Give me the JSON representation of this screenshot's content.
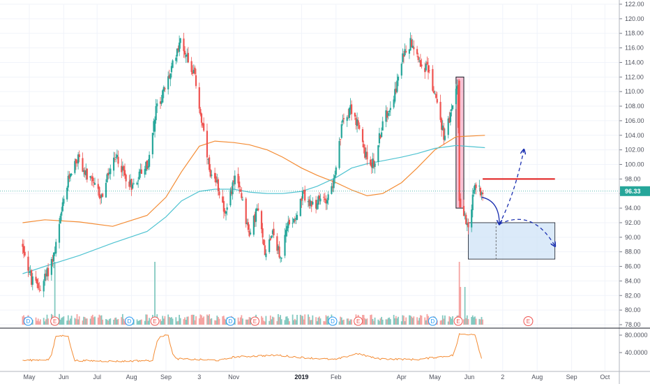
{
  "colors": {
    "up": "#26a69a",
    "down": "#ef5350",
    "vol_up": "#83c9c0",
    "vol_down": "#f5a3a1",
    "ma_orange": "#f48c34",
    "ma_teal": "#4fc3d1",
    "last_price_bg": "#26a69a",
    "dividend": "#2196f3",
    "earnings": "#ef5350",
    "highlight_rect": "#f48fb1",
    "target_box": "#cfe3f7",
    "arrow": "#1a2fb0",
    "resistance": "#e01b1b",
    "indicator_line": "#f48c34"
  },
  "price_axis": {
    "ticks": [
      "122.00",
      "120.00",
      "118.00",
      "116.00",
      "114.00",
      "112.00",
      "110.00",
      "108.00",
      "106.00",
      "104.00",
      "102.00",
      "100.00",
      "98.00",
      "96.00",
      "94.00",
      "92.00",
      "90.00",
      "88.00",
      "86.00",
      "84.00",
      "82.00",
      "80.00",
      "78.00"
    ],
    "last_price": "96.33"
  },
  "indicator_axis": {
    "ticks": [
      "80.0000",
      "40.0000"
    ]
  },
  "time_axis": {
    "labels": [
      "May",
      "Jun",
      "Jul",
      "Aug",
      "Sep",
      "3",
      "Nov",
      "2019",
      "Feb",
      "Apr",
      "May",
      "Jun",
      "2",
      "Aug",
      "Sep",
      "Oct"
    ],
    "bold_label": "2019"
  },
  "events": {
    "dividend_letter": "D",
    "earnings_letter": "E",
    "sequence": [
      "D",
      "E",
      "D",
      "E",
      "D",
      "E",
      "D",
      "E",
      "D",
      "E"
    ],
    "future_earnings": "E"
  },
  "chart_data": {
    "type": "candlestick",
    "title": "",
    "ylim": [
      78,
      122
    ],
    "indicator_ylim": [
      10,
      86
    ],
    "close_path": [
      [
        "2018-04-25",
        89
      ],
      [
        "2018-05-03",
        84
      ],
      [
        "2018-05-10",
        83
      ],
      [
        "2018-05-17",
        85
      ],
      [
        "2018-05-24",
        88
      ],
      [
        "2018-06-01",
        95
      ],
      [
        "2018-06-07",
        99
      ],
      [
        "2018-06-14",
        101
      ],
      [
        "2018-06-21",
        98.5
      ],
      [
        "2018-06-28",
        97
      ],
      [
        "2018-07-05",
        95.5
      ],
      [
        "2018-07-12",
        99
      ],
      [
        "2018-07-19",
        101
      ],
      [
        "2018-07-26",
        98.5
      ],
      [
        "2018-08-02",
        97
      ],
      [
        "2018-08-09",
        99
      ],
      [
        "2018-08-16",
        100
      ],
      [
        "2018-08-23",
        107.5
      ],
      [
        "2018-08-30",
        110
      ],
      [
        "2018-09-06",
        113
      ],
      [
        "2018-09-13",
        117
      ],
      [
        "2018-09-20",
        115
      ],
      [
        "2018-09-27",
        112
      ],
      [
        "2018-10-04",
        105
      ],
      [
        "2018-10-11",
        98
      ],
      [
        "2018-10-18",
        97
      ],
      [
        "2018-10-25",
        93
      ],
      [
        "2018-11-01",
        98
      ],
      [
        "2018-11-08",
        96
      ],
      [
        "2018-11-15",
        90
      ],
      [
        "2018-11-22",
        94
      ],
      [
        "2018-11-29",
        88
      ],
      [
        "2018-12-06",
        91
      ],
      [
        "2018-12-13",
        87
      ],
      [
        "2018-12-20",
        92
      ],
      [
        "2018-12-27",
        93
      ],
      [
        "2019-01-03",
        96
      ],
      [
        "2019-01-10",
        94
      ],
      [
        "2019-01-17",
        95
      ],
      [
        "2019-01-24",
        95.5
      ],
      [
        "2019-01-31",
        98
      ],
      [
        "2019-02-07",
        106
      ],
      [
        "2019-02-14",
        108
      ],
      [
        "2019-02-21",
        105
      ],
      [
        "2019-02-28",
        101
      ],
      [
        "2019-03-07",
        100
      ],
      [
        "2019-03-14",
        105
      ],
      [
        "2019-03-21",
        108
      ],
      [
        "2019-03-28",
        111
      ],
      [
        "2019-04-04",
        116
      ],
      [
        "2019-04-11",
        117
      ],
      [
        "2019-04-18",
        114
      ],
      [
        "2019-04-25",
        113
      ],
      [
        "2019-05-02",
        109
      ],
      [
        "2019-05-09",
        104
      ],
      [
        "2019-05-16",
        107
      ],
      [
        "2019-05-21",
        111
      ],
      [
        "2019-05-24",
        94
      ],
      [
        "2019-05-31",
        92
      ],
      [
        "2019-06-06",
        97
      ],
      [
        "2019-06-13",
        96.33
      ]
    ],
    "moving_averages": [
      {
        "color": "orange",
        "points": [
          [
            "2018-04-25",
            92
          ],
          [
            "2018-05-15",
            92.4
          ],
          [
            "2018-06-15",
            92.1
          ],
          [
            "2018-07-15",
            91.5
          ],
          [
            "2018-08-15",
            93
          ],
          [
            "2018-09-01",
            95.5
          ],
          [
            "2018-09-15",
            99
          ],
          [
            "2018-10-01",
            102.5
          ],
          [
            "2018-10-15",
            103.2
          ],
          [
            "2018-11-01",
            103
          ],
          [
            "2018-11-15",
            102.7
          ],
          [
            "2018-12-01",
            102
          ],
          [
            "2018-12-15",
            101
          ],
          [
            "2019-01-01",
            99.5
          ],
          [
            "2019-01-15",
            98.5
          ],
          [
            "2019-02-01",
            97.5
          ],
          [
            "2019-02-15",
            96.5
          ],
          [
            "2019-03-01",
            95.7
          ],
          [
            "2019-03-15",
            96
          ],
          [
            "2019-04-01",
            97.5
          ],
          [
            "2019-04-15",
            99.5
          ],
          [
            "2019-05-01",
            102
          ],
          [
            "2019-05-20",
            103.8
          ],
          [
            "2019-06-15",
            104
          ]
        ]
      },
      {
        "color": "teal",
        "points": [
          [
            "2018-04-25",
            85
          ],
          [
            "2018-05-15",
            86
          ],
          [
            "2018-06-15",
            87.5
          ],
          [
            "2018-07-15",
            89.2
          ],
          [
            "2018-08-15",
            90.8
          ],
          [
            "2018-09-01",
            92.8
          ],
          [
            "2018-09-15",
            95
          ],
          [
            "2018-10-01",
            96.3
          ],
          [
            "2018-10-15",
            96.6
          ],
          [
            "2018-11-01",
            96.6
          ],
          [
            "2018-11-15",
            96.2
          ],
          [
            "2018-12-01",
            96
          ],
          [
            "2018-12-15",
            96
          ],
          [
            "2019-01-01",
            96.3
          ],
          [
            "2019-01-15",
            97
          ],
          [
            "2019-02-01",
            98.2
          ],
          [
            "2019-02-15",
            99.5
          ],
          [
            "2019-03-01",
            100.1
          ],
          [
            "2019-03-15",
            100.5
          ],
          [
            "2019-04-01",
            101
          ],
          [
            "2019-04-15",
            101.5
          ],
          [
            "2019-05-01",
            102.2
          ],
          [
            "2019-05-20",
            102.6
          ],
          [
            "2019-06-15",
            102.3
          ]
        ]
      }
    ],
    "indicator_path": [
      [
        "2018-04-25",
        22
      ],
      [
        "2018-05-20",
        24
      ],
      [
        "2018-05-25",
        78
      ],
      [
        "2018-06-05",
        79
      ],
      [
        "2018-06-10",
        22
      ],
      [
        "2018-07-20",
        20
      ],
      [
        "2018-08-20",
        22
      ],
      [
        "2018-08-25",
        78
      ],
      [
        "2018-09-03",
        79
      ],
      [
        "2018-09-08",
        26
      ],
      [
        "2018-10-20",
        22
      ],
      [
        "2018-11-01",
        30
      ],
      [
        "2018-12-10",
        34
      ],
      [
        "2019-01-05",
        28
      ],
      [
        "2019-02-01",
        24
      ],
      [
        "2019-02-20",
        38
      ],
      [
        "2019-03-10",
        26
      ],
      [
        "2019-04-15",
        24
      ],
      [
        "2019-05-18",
        34
      ],
      [
        "2019-05-23",
        82
      ],
      [
        "2019-06-06",
        82
      ],
      [
        "2019-06-12",
        26
      ]
    ]
  }
}
